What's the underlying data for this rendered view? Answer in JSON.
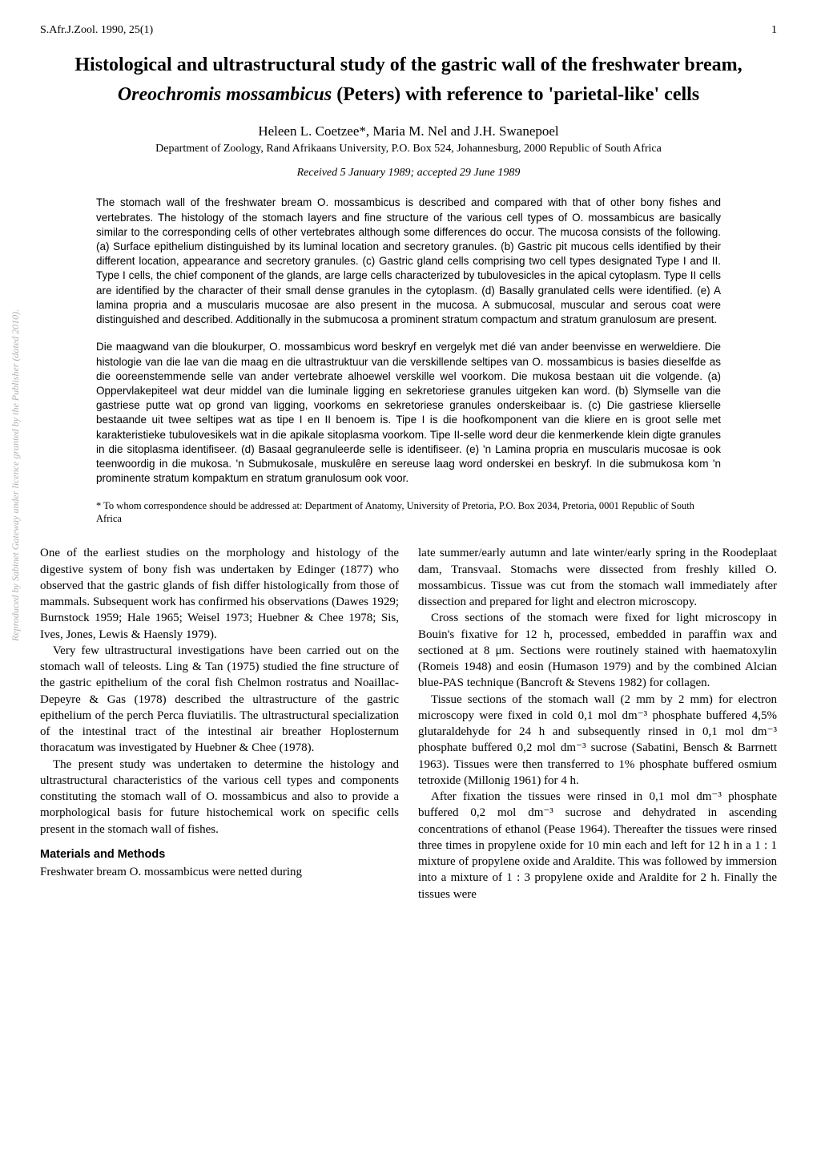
{
  "header": {
    "journal": "S.Afr.J.Zool. 1990, 25(1)",
    "pagenum": "1"
  },
  "title_line1": "Histological and ultrastructural study of the gastric wall of the freshwater bream,",
  "title_species": "Oreochromis mossambicus",
  "title_line2_rest": " (Peters) with reference to 'parietal-like' cells",
  "authors": "Heleen L. Coetzee*, Maria M. Nel and J.H. Swanepoel",
  "affiliation": "Department of Zoology, Rand Afrikaans University, P.O. Box 524, Johannesburg, 2000 Republic of South Africa",
  "received": "Received 5 January 1989; accepted 29 June 1989",
  "abstract_en": "The stomach wall of the freshwater bream O. mossambicus is described and compared with that of other bony fishes and vertebrates. The histology of the stomach layers and fine structure of the various cell types of O. mossambicus are basically similar to the corresponding cells of other vertebrates although some differences do occur. The mucosa consists of the following. (a) Surface epithelium distinguished by its luminal location and secretory granules. (b) Gastric pit mucous cells identified by their different location, appearance and secretory granules. (c) Gastric gland cells comprising two cell types designated Type I and II. Type I cells, the chief component of the glands, are large cells characterized by tubulovesicles in the apical cytoplasm. Type II cells are identified by the character of their small dense granules in the cytoplasm. (d) Basally granulated cells were identified. (e) A lamina propria and a muscularis mucosae are also present in the mucosa. A submucosal, muscular and serous coat were distinguished and described. Additionally in the submucosa a prominent stratum compactum and stratum granulosum are present.",
  "abstract_af": "Die maagwand van die bloukurper, O. mossambicus word beskryf en vergelyk met dié van ander beenvisse en werweldiere. Die histologie van die lae van die maag en die ultrastruktuur van die verskillende seltipes van O. mossambicus is basies dieselfde as die ooreenstemmende selle van ander vertebrate alhoewel verskille wel voorkom. Die mukosa bestaan uit die volgende. (a) Oppervlakepiteel wat deur middel van die luminale ligging en sekretoriese granules uitgeken kan word. (b) Slymselle van die gastriese putte wat op grond van ligging, voorkoms en sekretoriese granules onderskeibaar is. (c) Die gastriese klierselle bestaande uit twee seltipes wat as tipe I en II benoem is. Tipe I is die hoofkomponent van die kliere en is groot selle met karakteristieke tubulovesikels wat in die apikale sitoplasma voorkom. Tipe II-selle word deur die kenmerkende klein digte granules in die sitoplasma identifiseer. (d) Basaal gegranuleerde selle is identifiseer. (e) 'n Lamina propria en muscularis mucosae is ook teenwoordig in die mukosa. 'n Submukosale, muskulêre en sereuse laag word onderskei en beskryf. In die submukosa kom 'n prominente stratum kompaktum en stratum granulosum ook voor.",
  "correspondence": "* To whom correspondence should be addressed at: Department of Anatomy, University of Pretoria, P.O. Box 2034, Pretoria, 0001 Republic of South Africa",
  "body": {
    "p1": "One of the earliest studies on the morphology and histology of the digestive system of bony fish was undertaken by Edinger (1877) who observed that the gastric glands of fish differ histologically from those of mammals. Subsequent work has confirmed his observations (Dawes 1929; Burnstock 1959; Hale 1965; Weisel 1973; Huebner & Chee 1978; Sis, Ives, Jones, Lewis & Haensly 1979).",
    "p2": "Very few ultrastructural investigations have been carried out on the stomach wall of teleosts. Ling & Tan (1975) studied the fine structure of the gastric epithelium of the coral fish Chelmon rostratus and Noaillac-Depeyre & Gas (1978) described the ultrastructure of the gastric epithelium of the perch Perca fluviatilis. The ultrastructural specialization of the intestinal tract of the intestinal air breather Hoplosternum thoracatum was investigated by Huebner & Chee (1978).",
    "p3": "The present study was undertaken to determine the histology and ultrastructural characteristics of the various cell types and components constituting the stomach wall of O. mossambicus and also to provide a morphological basis for future histochemical work on specific cells present in the stomach wall of fishes.",
    "mm_heading": "Materials and Methods",
    "p4": "Freshwater bream O. mossambicus were netted during",
    "p5": "late summer/early autumn and late winter/early spring in the Roodeplaat dam, Transvaal. Stomachs were dissected from freshly killed O. mossambicus. Tissue was cut from the stomach wall immediately after dissection and prepared for light and electron microscopy.",
    "p6": "Cross sections of the stomach were fixed for light microscopy in Bouin's fixative for 12 h, processed, embedded in paraffin wax and sectioned at 8 μm. Sections were routinely stained with haematoxylin (Romeis 1948) and eosin (Humason 1979) and by the combined Alcian blue-PAS technique (Bancroft & Stevens 1982) for collagen.",
    "p7": "Tissue sections of the stomach wall (2 mm by 2 mm) for electron microscopy were fixed in cold 0,1 mol dm⁻³ phosphate buffered 4,5% glutaraldehyde for 24 h and subsequently rinsed in 0,1 mol dm⁻³ phosphate buffered 0,2 mol dm⁻³ sucrose (Sabatini, Bensch & Barrnett 1963). Tissues were then transferred to 1% phosphate buffered osmium tetroxide (Millonig 1961) for 4 h.",
    "p8": "After fixation the tissues were rinsed in 0,1 mol dm⁻³ phosphate buffered 0,2 mol dm⁻³ sucrose and dehydrated in ascending concentrations of ethanol (Pease 1964). Thereafter the tissues were rinsed three times in propylene oxide for 10 min each and left for 12 h in a 1 : 1 mixture of propylene oxide and Araldite. This was followed by immersion into a mixture of 1 : 3 propylene oxide and Araldite for 2 h. Finally the tissues were"
  },
  "sidebar": "Reproduced by Sabinet Gateway under licence granted by the Publisher (dated 2010)."
}
